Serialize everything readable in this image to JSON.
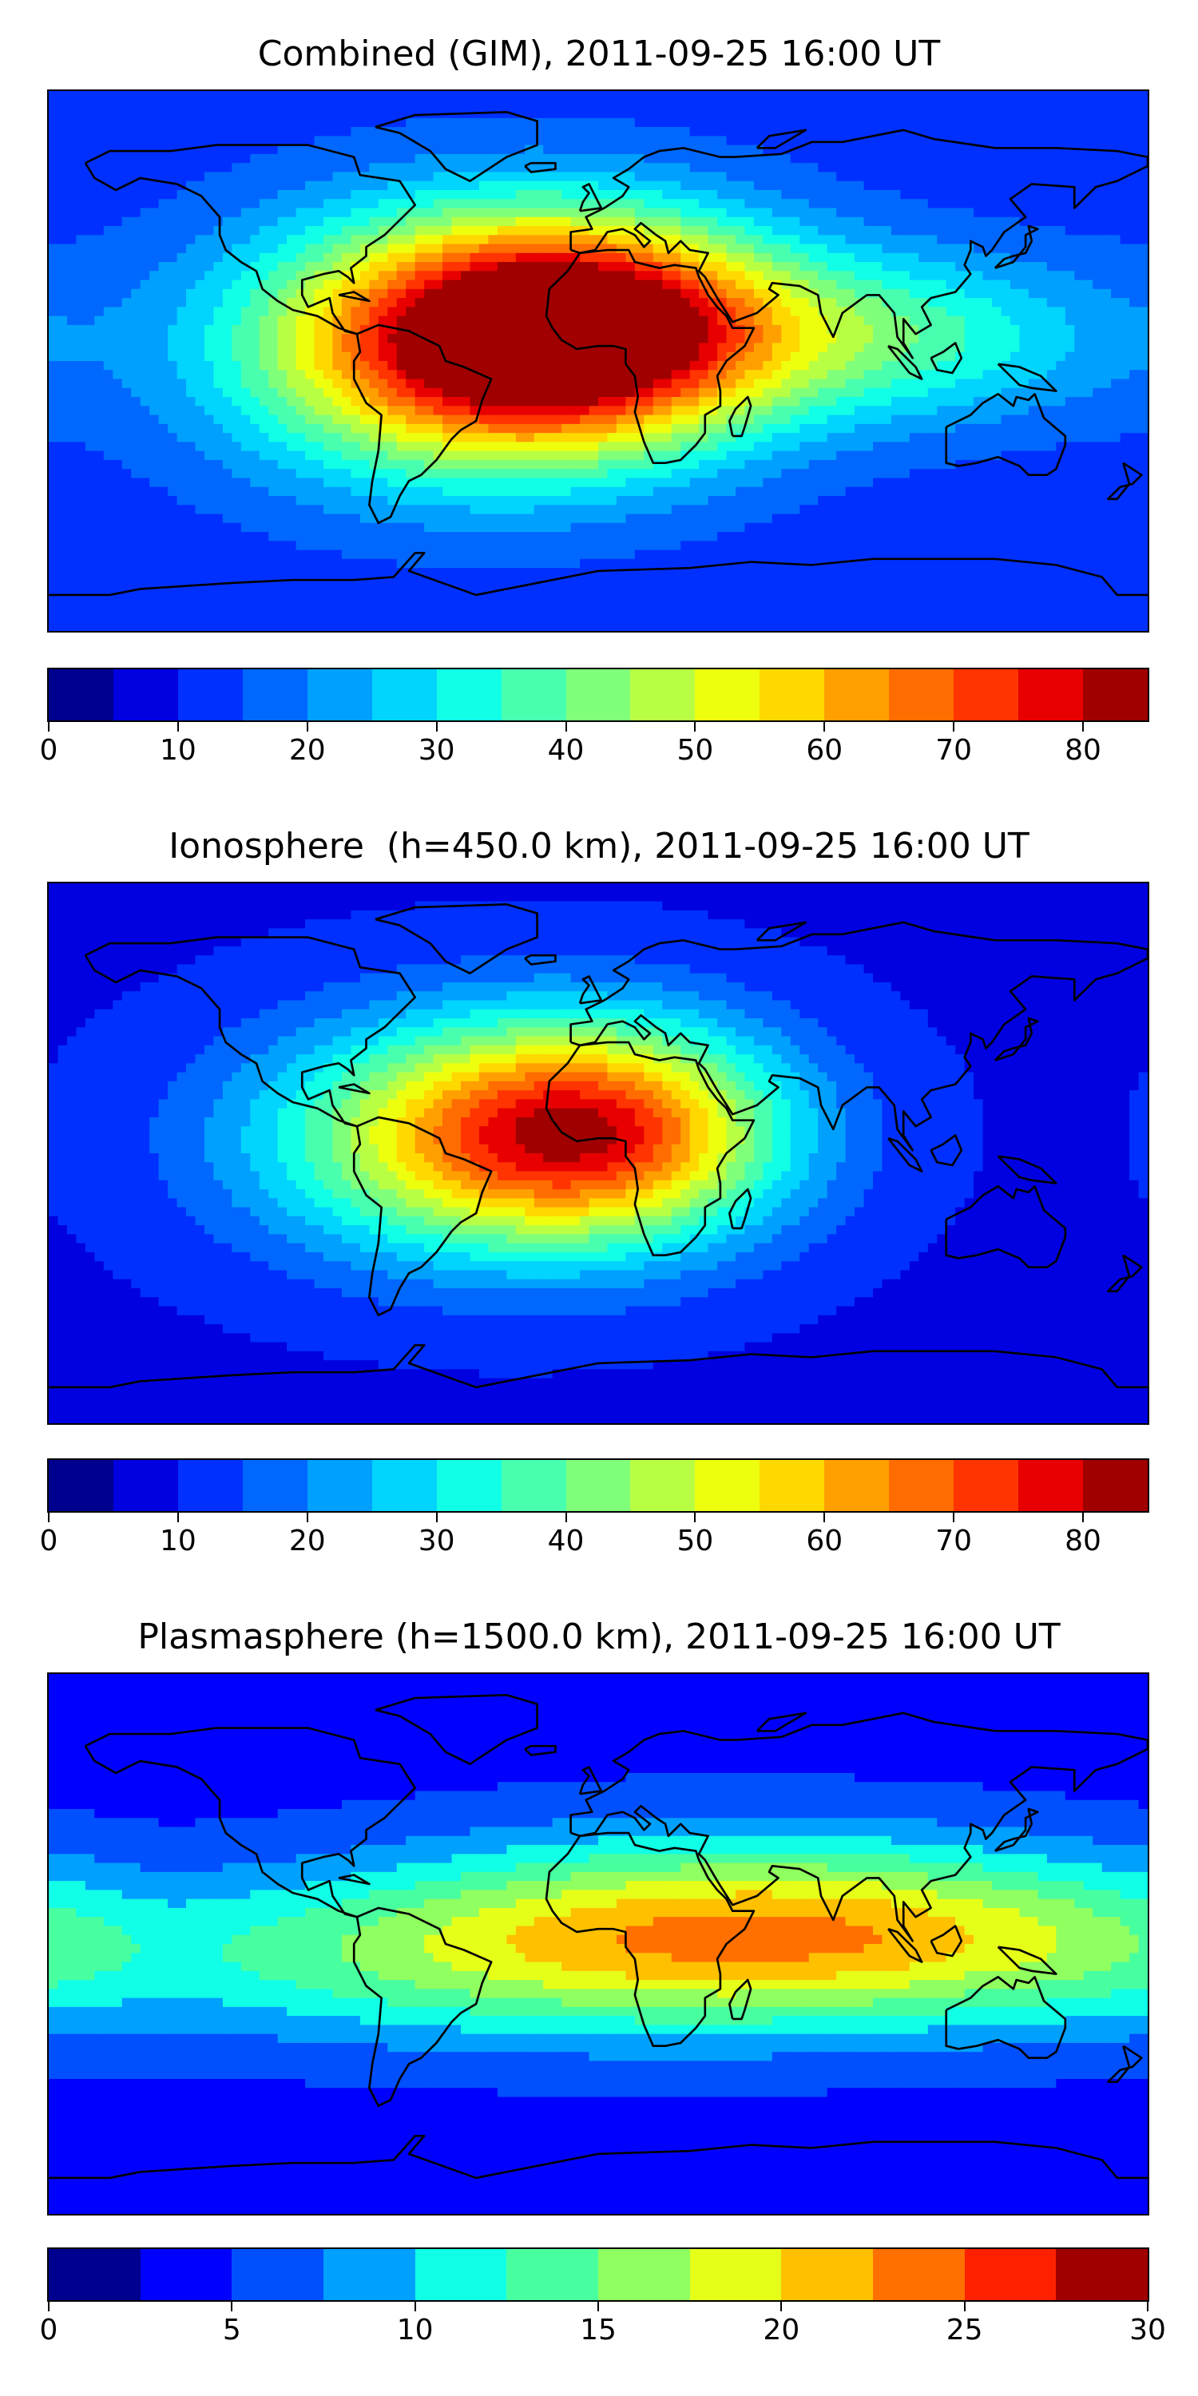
{
  "panels": [
    {
      "title": "Combined (GIM), 2011-09-25 16:00 UT",
      "colorbar": {
        "min": 0,
        "max": 85,
        "step": 5,
        "ticks": [
          "0",
          "10",
          "20",
          "30",
          "40",
          "50",
          "60",
          "70",
          "80"
        ],
        "colors": [
          "#00008f",
          "#0000e0",
          "#0030ff",
          "#0068ff",
          "#00a0ff",
          "#00d4ff",
          "#10ffe6",
          "#48ffb0",
          "#80ff7a",
          "#b8ff44",
          "#eeff0e",
          "#ffd800",
          "#ffa000",
          "#ff6c00",
          "#ff3400",
          "#e80000",
          "#a00000"
        ]
      },
      "field": {
        "background": 12,
        "peaks": [
          {
            "lon": -40,
            "lat": 5,
            "value": 72,
            "spread_lon": 55,
            "spread_lat": 30
          },
          {
            "lon": 0,
            "lat": 12,
            "value": 60,
            "spread_lon": 45,
            "spread_lat": 25
          },
          {
            "lon": 100,
            "lat": 8,
            "value": 35,
            "spread_lon": 50,
            "spread_lat": 20
          }
        ]
      }
    },
    {
      "title": "Ionosphere  (h=450.0 km), 2011-09-25 16:00 UT",
      "colorbar": {
        "min": 0,
        "max": 85,
        "step": 5,
        "ticks": [
          "0",
          "10",
          "20",
          "30",
          "40",
          "50",
          "60",
          "70",
          "80"
        ],
        "colors": [
          "#00008f",
          "#0000e0",
          "#0030ff",
          "#0068ff",
          "#00a0ff",
          "#00d4ff",
          "#10ffe6",
          "#48ffb0",
          "#80ff7a",
          "#b8ff44",
          "#eeff0e",
          "#ffd800",
          "#ffa000",
          "#ff6c00",
          "#ff3400",
          "#e80000",
          "#a00000"
        ]
      },
      "field": {
        "background": 9,
        "peaks": [
          {
            "lon": -35,
            "lat": 5,
            "value": 55,
            "spread_lon": 55,
            "spread_lat": 28
          },
          {
            "lon": 5,
            "lat": 8,
            "value": 45,
            "spread_lon": 40,
            "spread_lat": 25
          }
        ]
      }
    },
    {
      "title": "Plasmasphere (h=1500.0 km), 2011-09-25 16:00 UT",
      "colorbar": {
        "min": 0,
        "max": 30,
        "step": 2.5,
        "ticks": [
          "0",
          "5",
          "10",
          "15",
          "20",
          "25",
          "30"
        ],
        "colors": [
          "#00008f",
          "#0000ff",
          "#0050ff",
          "#00a0ff",
          "#10ffe6",
          "#48ffa0",
          "#90ff60",
          "#e6ff18",
          "#ffc000",
          "#ff7000",
          "#ff2000",
          "#a00000"
        ]
      },
      "field": {
        "background": 4,
        "peaks": [
          {
            "lon": 40,
            "lat": 5,
            "value": 18,
            "spread_lon": 80,
            "spread_lat": 22
          },
          {
            "lon": -60,
            "lat": -5,
            "value": 11,
            "spread_lon": 90,
            "spread_lat": 20
          },
          {
            "lon": 130,
            "lat": 0,
            "value": 11,
            "spread_lon": 60,
            "spread_lat": 20
          }
        ]
      }
    }
  ]
}
